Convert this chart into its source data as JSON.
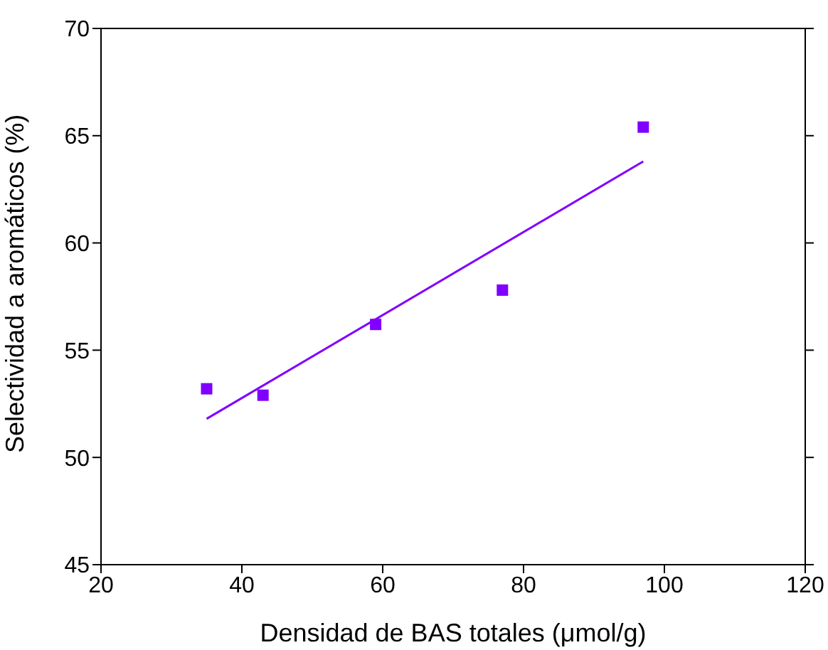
{
  "chart_data": {
    "type": "scatter",
    "xlabel": "Densidad de BAS totales (μmol/g)",
    "ylabel": "Selectividad a aromáticos (%)",
    "grid": false,
    "legend": false,
    "xlim": [
      20,
      120
    ],
    "xticks": [
      20,
      40,
      60,
      80,
      100,
      120
    ],
    "ylim": [
      45,
      70
    ],
    "yticks": [
      45,
      50,
      55,
      60,
      65,
      70
    ],
    "series": [
      {
        "color": "#8000ff",
        "marker": "square",
        "x": [
          35,
          43,
          59,
          77,
          97
        ],
        "values": [
          53.2,
          52.9,
          56.2,
          57.8,
          65.4
        ]
      },
      {
        "type": "line",
        "color": "#8000ff",
        "marker": "none",
        "x": [
          35,
          97
        ],
        "values": [
          51.8,
          63.8
        ]
      }
    ]
  }
}
